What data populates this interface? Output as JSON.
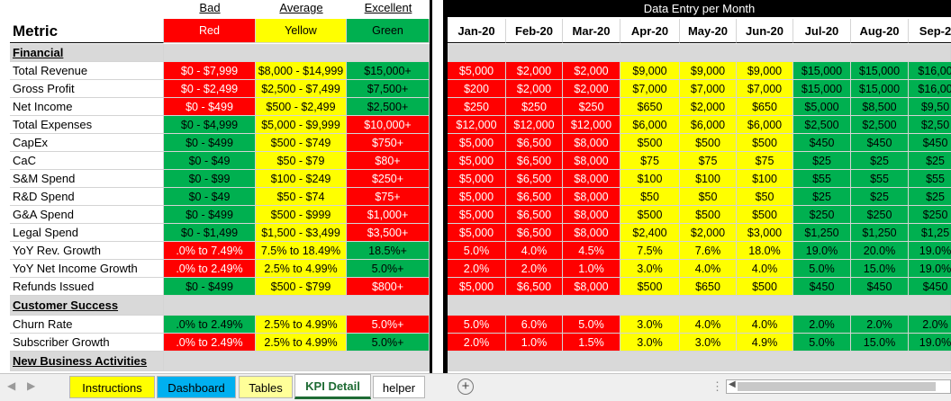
{
  "header": {
    "bad": "Bad",
    "average": "Average",
    "excellent": "Excellent",
    "data_entry_title": "Data Entry per Month",
    "metric": "Metric",
    "red": "Red",
    "yellow": "Yellow",
    "green": "Green",
    "months": [
      "Jan-20",
      "Feb-20",
      "Mar-20",
      "Apr-20",
      "May-20",
      "Jun-20",
      "Jul-20",
      "Aug-20",
      "Sep-2"
    ]
  },
  "rows": [
    {
      "type": "section",
      "label": "Financial"
    },
    {
      "type": "metric",
      "label": "Total Revenue",
      "t": [
        "$0 - $7,999",
        "$8,000 - $14,999",
        "$15,000+"
      ],
      "tc": [
        "r",
        "y",
        "g"
      ],
      "v": [
        "$5,000",
        "$2,000",
        "$2,000",
        "$9,000",
        "$9,000",
        "$9,000",
        "$15,000",
        "$15,000",
        "$16,00"
      ],
      "vc": [
        "r",
        "r",
        "r",
        "y",
        "y",
        "y",
        "g",
        "g",
        "g"
      ]
    },
    {
      "type": "metric",
      "label": "Gross Profit",
      "t": [
        "$0 - $2,499",
        "$2,500 - $7,499",
        "$7,500+"
      ],
      "tc": [
        "r",
        "y",
        "g"
      ],
      "v": [
        "$200",
        "$2,000",
        "$2,000",
        "$7,000",
        "$7,000",
        "$7,000",
        "$15,000",
        "$15,000",
        "$16,00"
      ],
      "vc": [
        "r",
        "r",
        "r",
        "y",
        "y",
        "y",
        "g",
        "g",
        "g"
      ]
    },
    {
      "type": "metric",
      "label": "Net Income",
      "t": [
        "$0 - $499",
        "$500 - $2,499",
        "$2,500+"
      ],
      "tc": [
        "r",
        "y",
        "g"
      ],
      "v": [
        "$250",
        "$250",
        "$250",
        "$650",
        "$2,000",
        "$650",
        "$5,000",
        "$8,500",
        "$9,50"
      ],
      "vc": [
        "r",
        "r",
        "r",
        "y",
        "y",
        "y",
        "g",
        "g",
        "g"
      ]
    },
    {
      "type": "metric",
      "label": "Total Expenses",
      "t": [
        "$0 - $4,999",
        "$5,000 - $9,999",
        "$10,000+"
      ],
      "tc": [
        "g",
        "y",
        "r"
      ],
      "v": [
        "$12,000",
        "$12,000",
        "$12,000",
        "$6,000",
        "$6,000",
        "$6,000",
        "$2,500",
        "$2,500",
        "$2,50"
      ],
      "vc": [
        "r",
        "r",
        "r",
        "y",
        "y",
        "y",
        "g",
        "g",
        "g"
      ]
    },
    {
      "type": "metric",
      "label": "CapEx",
      "t": [
        "$0 - $499",
        "$500 - $749",
        "$750+"
      ],
      "tc": [
        "g",
        "y",
        "r"
      ],
      "v": [
        "$5,000",
        "$6,500",
        "$8,000",
        "$500",
        "$500",
        "$500",
        "$450",
        "$450",
        "$450"
      ],
      "vc": [
        "r",
        "r",
        "r",
        "y",
        "y",
        "y",
        "g",
        "g",
        "g"
      ]
    },
    {
      "type": "metric",
      "label": "CaC",
      "t": [
        "$0 - $49",
        "$50 - $79",
        "$80+"
      ],
      "tc": [
        "g",
        "y",
        "r"
      ],
      "v": [
        "$5,000",
        "$6,500",
        "$8,000",
        "$75",
        "$75",
        "$75",
        "$25",
        "$25",
        "$25"
      ],
      "vc": [
        "r",
        "r",
        "r",
        "y",
        "y",
        "y",
        "g",
        "g",
        "g"
      ]
    },
    {
      "type": "metric",
      "label": "S&M Spend",
      "t": [
        "$0 - $99",
        "$100 - $249",
        "$250+"
      ],
      "tc": [
        "g",
        "y",
        "r"
      ],
      "v": [
        "$5,000",
        "$6,500",
        "$8,000",
        "$100",
        "$100",
        "$100",
        "$55",
        "$55",
        "$55"
      ],
      "vc": [
        "r",
        "r",
        "r",
        "y",
        "y",
        "y",
        "g",
        "g",
        "g"
      ]
    },
    {
      "type": "metric",
      "label": "R&D Spend",
      "t": [
        "$0 - $49",
        "$50 - $74",
        "$75+"
      ],
      "tc": [
        "g",
        "y",
        "r"
      ],
      "v": [
        "$5,000",
        "$6,500",
        "$8,000",
        "$50",
        "$50",
        "$50",
        "$25",
        "$25",
        "$25"
      ],
      "vc": [
        "r",
        "r",
        "r",
        "y",
        "y",
        "y",
        "g",
        "g",
        "g"
      ]
    },
    {
      "type": "metric",
      "label": "G&A Spend",
      "t": [
        "$0 - $499",
        "$500 - $999",
        "$1,000+"
      ],
      "tc": [
        "g",
        "y",
        "r"
      ],
      "v": [
        "$5,000",
        "$6,500",
        "$8,000",
        "$500",
        "$500",
        "$500",
        "$250",
        "$250",
        "$250"
      ],
      "vc": [
        "r",
        "r",
        "r",
        "y",
        "y",
        "y",
        "g",
        "g",
        "g"
      ]
    },
    {
      "type": "metric",
      "label": "Legal Spend",
      "t": [
        "$0 - $1,499",
        "$1,500 - $3,499",
        "$3,500+"
      ],
      "tc": [
        "g",
        "y",
        "r"
      ],
      "v": [
        "$5,000",
        "$6,500",
        "$8,000",
        "$2,400",
        "$2,000",
        "$3,000",
        "$1,250",
        "$1,250",
        "$1,25"
      ],
      "vc": [
        "r",
        "r",
        "r",
        "y",
        "y",
        "y",
        "g",
        "g",
        "g"
      ]
    },
    {
      "type": "metric",
      "label": "YoY Rev. Growth",
      "t": [
        ".0% to 7.49%",
        "7.5% to 18.49%",
        "18.5%+"
      ],
      "tc": [
        "r",
        "y",
        "g"
      ],
      "v": [
        "5.0%",
        "4.0%",
        "4.5%",
        "7.5%",
        "7.6%",
        "18.0%",
        "19.0%",
        "20.0%",
        "19.0%"
      ],
      "vc": [
        "r",
        "r",
        "r",
        "y",
        "y",
        "y",
        "g",
        "g",
        "g"
      ]
    },
    {
      "type": "metric",
      "label": "YoY Net Income Growth",
      "t": [
        ".0% to 2.49%",
        "2.5% to 4.99%",
        "5.0%+"
      ],
      "tc": [
        "r",
        "y",
        "g"
      ],
      "v": [
        "2.0%",
        "2.0%",
        "1.0%",
        "3.0%",
        "4.0%",
        "4.0%",
        "5.0%",
        "15.0%",
        "19.0%"
      ],
      "vc": [
        "r",
        "r",
        "r",
        "y",
        "y",
        "y",
        "g",
        "g",
        "g"
      ]
    },
    {
      "type": "metric",
      "label": "Refunds Issued",
      "t": [
        "$0 - $499",
        "$500 - $799",
        "$800+"
      ],
      "tc": [
        "g",
        "y",
        "r"
      ],
      "v": [
        "$5,000",
        "$6,500",
        "$8,000",
        "$500",
        "$650",
        "$500",
        "$450",
        "$450",
        "$450"
      ],
      "vc": [
        "r",
        "r",
        "r",
        "y",
        "y",
        "y",
        "g",
        "g",
        "g"
      ]
    },
    {
      "type": "section",
      "label": "Customer Success"
    },
    {
      "type": "metric",
      "label": "Churn Rate",
      "t": [
        ".0% to 2.49%",
        "2.5% to 4.99%",
        "5.0%+"
      ],
      "tc": [
        "g",
        "y",
        "r"
      ],
      "v": [
        "5.0%",
        "6.0%",
        "5.0%",
        "3.0%",
        "4.0%",
        "4.0%",
        "2.0%",
        "2.0%",
        "2.0%"
      ],
      "vc": [
        "r",
        "r",
        "r",
        "y",
        "y",
        "y",
        "g",
        "g",
        "g"
      ]
    },
    {
      "type": "metric",
      "label": "Subscriber Growth",
      "t": [
        ".0% to 2.49%",
        "2.5% to 4.99%",
        "5.0%+"
      ],
      "tc": [
        "r",
        "y",
        "g"
      ],
      "v": [
        "2.0%",
        "1.0%",
        "1.5%",
        "3.0%",
        "3.0%",
        "4.9%",
        "5.0%",
        "15.0%",
        "19.0%"
      ],
      "vc": [
        "r",
        "r",
        "r",
        "y",
        "y",
        "y",
        "g",
        "g",
        "g"
      ]
    },
    {
      "type": "section",
      "label": "New Business Activities"
    }
  ],
  "tabs": [
    {
      "label": "Instructions",
      "color": "#ffff00",
      "active": false
    },
    {
      "label": "Dashboard",
      "color": "#00b0f0",
      "active": false
    },
    {
      "label": "Tables",
      "color": "#ffff99",
      "active": false
    },
    {
      "label": "KPI Detail",
      "color": "#ffffff",
      "active": true
    },
    {
      "label": "helper",
      "color": "#ffffff",
      "active": false
    }
  ],
  "icons": {
    "add_sheet": "+",
    "nav_prev": "◀",
    "nav_next": "▶",
    "more": "⋮"
  }
}
